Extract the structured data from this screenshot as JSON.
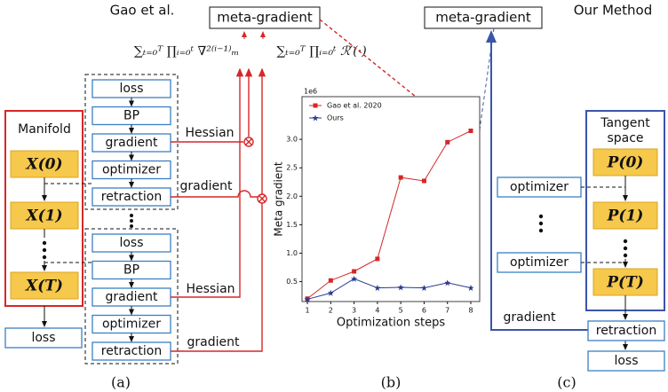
{
  "header": {
    "left": "Gao et al.",
    "right": "Our Method"
  },
  "top": {
    "meta_left": "meta-gradient",
    "meta_right": "meta-gradient",
    "formula_left": "∑ₜ₌₀ᵀ ∏ᵢ₌₀ᵗ ∇²⁽ⁱ⁻¹⁾ₘ",
    "formula_right": "∑ₜ₌₀ᵀ ∏ᵢ₌₀ᵗ ℛ′(·)"
  },
  "panel_a": {
    "manifold_label": "Manifold",
    "states": [
      "X(0)",
      "X(1)",
      "X(T)"
    ],
    "loss": "loss",
    "block1": [
      "loss",
      "BP",
      "gradient",
      "optimizer",
      "retraction"
    ],
    "block2": [
      "loss",
      "BP",
      "gradient",
      "optimizer",
      "retraction"
    ],
    "edge_labels": [
      "Hessian",
      "gradient",
      "Hessian",
      "gradient"
    ],
    "caption": "(a)"
  },
  "chart_data": {
    "type": "line",
    "ylabel": "Meta gradient",
    "xlabel": "Optimization steps",
    "scale_label": "1e6",
    "caption": "(b)",
    "x": [
      1,
      2,
      3,
      4,
      5,
      6,
      7,
      8
    ],
    "series": [
      {
        "name": "Gao et al. 2020",
        "color": "#d62728",
        "marker": "square",
        "values": [
          0.2,
          0.52,
          0.68,
          0.9,
          2.33,
          2.27,
          2.95,
          3.15
        ]
      },
      {
        "name": "Ours",
        "color": "#2b3a8f",
        "marker": "star",
        "values": [
          0.19,
          0.3,
          0.55,
          0.39,
          0.4,
          0.39,
          0.48,
          0.39
        ]
      }
    ],
    "xlim": [
      0.77,
      8.38
    ],
    "ylim": [
      0.15,
      3.75
    ],
    "xticks": [
      1,
      2,
      3,
      4,
      5,
      6,
      7,
      8
    ],
    "yticks": [
      0.5,
      {
        "value": 1,
        "label": "1.0"
      },
      1.5,
      {
        "value": 2,
        "label": "2.0"
      },
      2.5,
      {
        "value": 3,
        "label": "3.0"
      }
    ],
    "legend": "upper left"
  },
  "panel_c": {
    "space_label": [
      "Tangent",
      "space"
    ],
    "states": [
      "P(0)",
      "P(1)",
      "P(T)"
    ],
    "optimizers": [
      "optimizer",
      "optimizer"
    ],
    "gradient": "gradient",
    "retraction": "retraction",
    "loss": "loss",
    "caption": "(c)"
  }
}
